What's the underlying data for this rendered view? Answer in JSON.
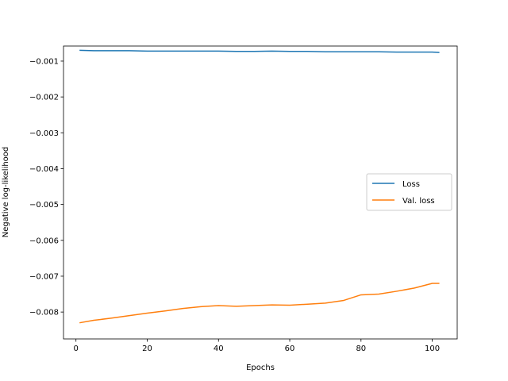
{
  "chart_data": {
    "type": "line",
    "xlabel": "Epochs",
    "ylabel": "Negative log-likelihood",
    "xlim": [
      -3.5,
      107
    ],
    "ylim": [
      -0.00875,
      -0.00058
    ],
    "xticks": [
      0,
      20,
      40,
      60,
      80,
      100
    ],
    "xtick_labels": [
      "0",
      "20",
      "40",
      "60",
      "80",
      "100"
    ],
    "yticks": [
      -0.001,
      -0.002,
      -0.003,
      -0.004,
      -0.005,
      -0.006,
      -0.007,
      -0.008
    ],
    "ytick_labels": [
      "−0.001",
      "−0.002",
      "−0.003",
      "−0.004",
      "−0.005",
      "−0.006",
      "−0.007",
      "−0.008"
    ],
    "grid": false,
    "legend_position": "center-right",
    "x": [
      1,
      5,
      10,
      15,
      20,
      25,
      30,
      35,
      40,
      45,
      50,
      55,
      60,
      65,
      70,
      75,
      80,
      85,
      90,
      95,
      100,
      102
    ],
    "series": [
      {
        "name": "Loss",
        "color": "#1f77b4",
        "values": [
          -0.0007,
          -0.00071,
          -0.00071,
          -0.00071,
          -0.00072,
          -0.00072,
          -0.00072,
          -0.00072,
          -0.00072,
          -0.00073,
          -0.00073,
          -0.00072,
          -0.00073,
          -0.00073,
          -0.00074,
          -0.00074,
          -0.00074,
          -0.00074,
          -0.00075,
          -0.00075,
          -0.00075,
          -0.00076
        ]
      },
      {
        "name": "Val. loss",
        "color": "#ff7f0e",
        "values": [
          -0.0083,
          -0.00823,
          -0.00817,
          -0.0081,
          -0.00803,
          -0.00797,
          -0.0079,
          -0.00785,
          -0.00782,
          -0.00784,
          -0.00782,
          -0.0078,
          -0.00781,
          -0.00778,
          -0.00775,
          -0.00768,
          -0.00752,
          -0.0075,
          -0.00742,
          -0.00733,
          -0.0072,
          -0.0072
        ]
      }
    ]
  }
}
